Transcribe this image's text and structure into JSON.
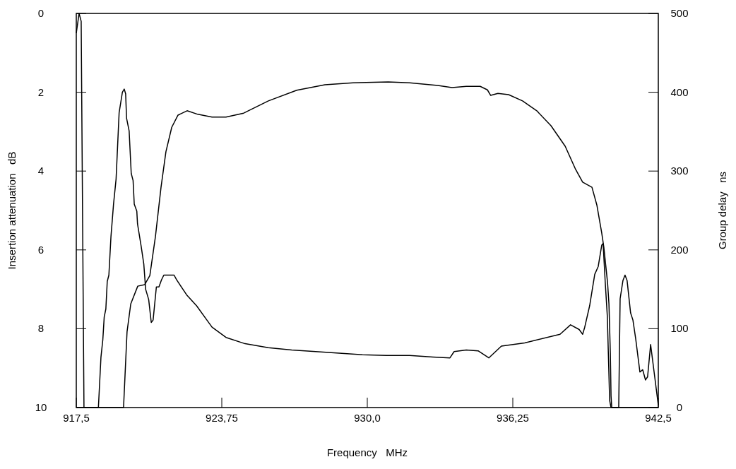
{
  "chart_data": {
    "type": "line",
    "xlabel": "Frequency   MHz",
    "ylabel": "Insertion attenuation   dB",
    "y2label": "Group delay   ns",
    "xlim": [
      917.5,
      942.5
    ],
    "xticks": [
      {
        "value": 917.5,
        "label": "917,5"
      },
      {
        "value": 923.75,
        "label": "923,75"
      },
      {
        "value": 930.0,
        "label": "930,0"
      },
      {
        "value": 936.25,
        "label": "936,25"
      },
      {
        "value": 942.5,
        "label": "942,5"
      }
    ],
    "ylim": [
      10,
      0
    ],
    "yticks": [
      0,
      2,
      4,
      6,
      8,
      10
    ],
    "y2lim": [
      0,
      500
    ],
    "y2ticks": [
      0,
      100,
      200,
      300,
      400,
      500
    ],
    "grid": false,
    "series": [
      {
        "color": "#000000",
        "x": [
          917.5,
          919.53,
          919.68,
          919.84,
          920.14,
          920.44,
          920.66,
          920.9,
          921.14,
          921.35,
          921.6,
          921.87,
          922.26,
          922.72,
          923.33,
          923.93,
          924.69,
          925.75,
          926.97,
          928.18,
          929.39,
          930.9,
          931.82,
          933.03,
          933.64,
          934.25,
          934.85,
          935.16,
          935.3,
          935.61,
          936.07,
          936.67,
          937.28,
          937.89,
          938.5,
          938.95,
          939.25,
          939.65,
          939.86,
          940.07,
          940.16,
          940.32,
          940.38,
          940.44,
          940.47,
          940.5,
          942.5
        ],
        "values": [
          10,
          10,
          8.08,
          7.37,
          6.92,
          6.88,
          6.65,
          5.66,
          4.41,
          3.51,
          2.89,
          2.58,
          2.47,
          2.56,
          2.63,
          2.63,
          2.53,
          2.22,
          1.95,
          1.81,
          1.76,
          1.74,
          1.76,
          1.83,
          1.88,
          1.85,
          1.85,
          1.94,
          2.08,
          2.03,
          2.06,
          2.22,
          2.47,
          2.85,
          3.37,
          3.96,
          4.28,
          4.41,
          4.86,
          5.57,
          5.93,
          6.83,
          7.37,
          8.62,
          9.7,
          10,
          10
        ]
      },
      {
        "color": "#000000",
        "axis": "y2",
        "x": [
          917.5,
          917.62,
          917.71,
          917.83,
          918.45,
          918.56,
          918.64,
          918.7,
          918.77,
          918.83,
          918.9,
          918.99,
          919.1,
          919.21,
          919.34,
          919.48,
          919.56,
          919.62,
          919.66,
          919.77,
          919.86,
          919.94,
          919.99,
          920.1,
          920.13,
          920.29,
          920.4,
          920.48,
          920.61,
          920.72,
          920.8,
          920.94,
          921.05,
          921.16,
          921.26,
          921.7,
          921.81,
          922.24,
          922.67,
          923.11,
          923.33,
          923.93,
          924.75,
          925.75,
          926.75,
          927.78,
          928.79,
          929.79,
          930.82,
          931.82,
          932.82,
          933.55,
          933.73,
          934.25,
          934.76,
          935.22,
          935.76,
          936.76,
          938.28,
          938.73,
          939.1,
          939.25,
          939.34,
          939.55,
          939.77,
          939.92,
          940.07,
          940.13,
          940.22,
          940.31,
          940.41,
          940.47,
          940.8,
          940.86,
          940.98,
          941.07,
          941.16,
          941.31,
          941.41,
          941.53,
          941.71,
          941.83,
          941.95,
          942.04,
          942.17,
          942.32,
          942.5
        ],
        "values": [
          475,
          500,
          490,
          0,
          0,
          64,
          86,
          115,
          125,
          160,
          168,
          217,
          258,
          290,
          374,
          400,
          404,
          398,
          367,
          351,
          297,
          288,
          258,
          249,
          233,
          204,
          182,
          150,
          137,
          108,
          111,
          153,
          153,
          162,
          168,
          168,
          162,
          143,
          129,
          111,
          102,
          89,
          81,
          76,
          73,
          71,
          69,
          67,
          66,
          66,
          64,
          63,
          71,
          73,
          72,
          63,
          78,
          82,
          93,
          105,
          99,
          93,
          102,
          129,
          169,
          179,
          206,
          208,
          159,
          116,
          9,
          0,
          0,
          138,
          161,
          168,
          161,
          120,
          111,
          87,
          45,
          48,
          35,
          39,
          80,
          45,
          3
        ]
      }
    ]
  }
}
